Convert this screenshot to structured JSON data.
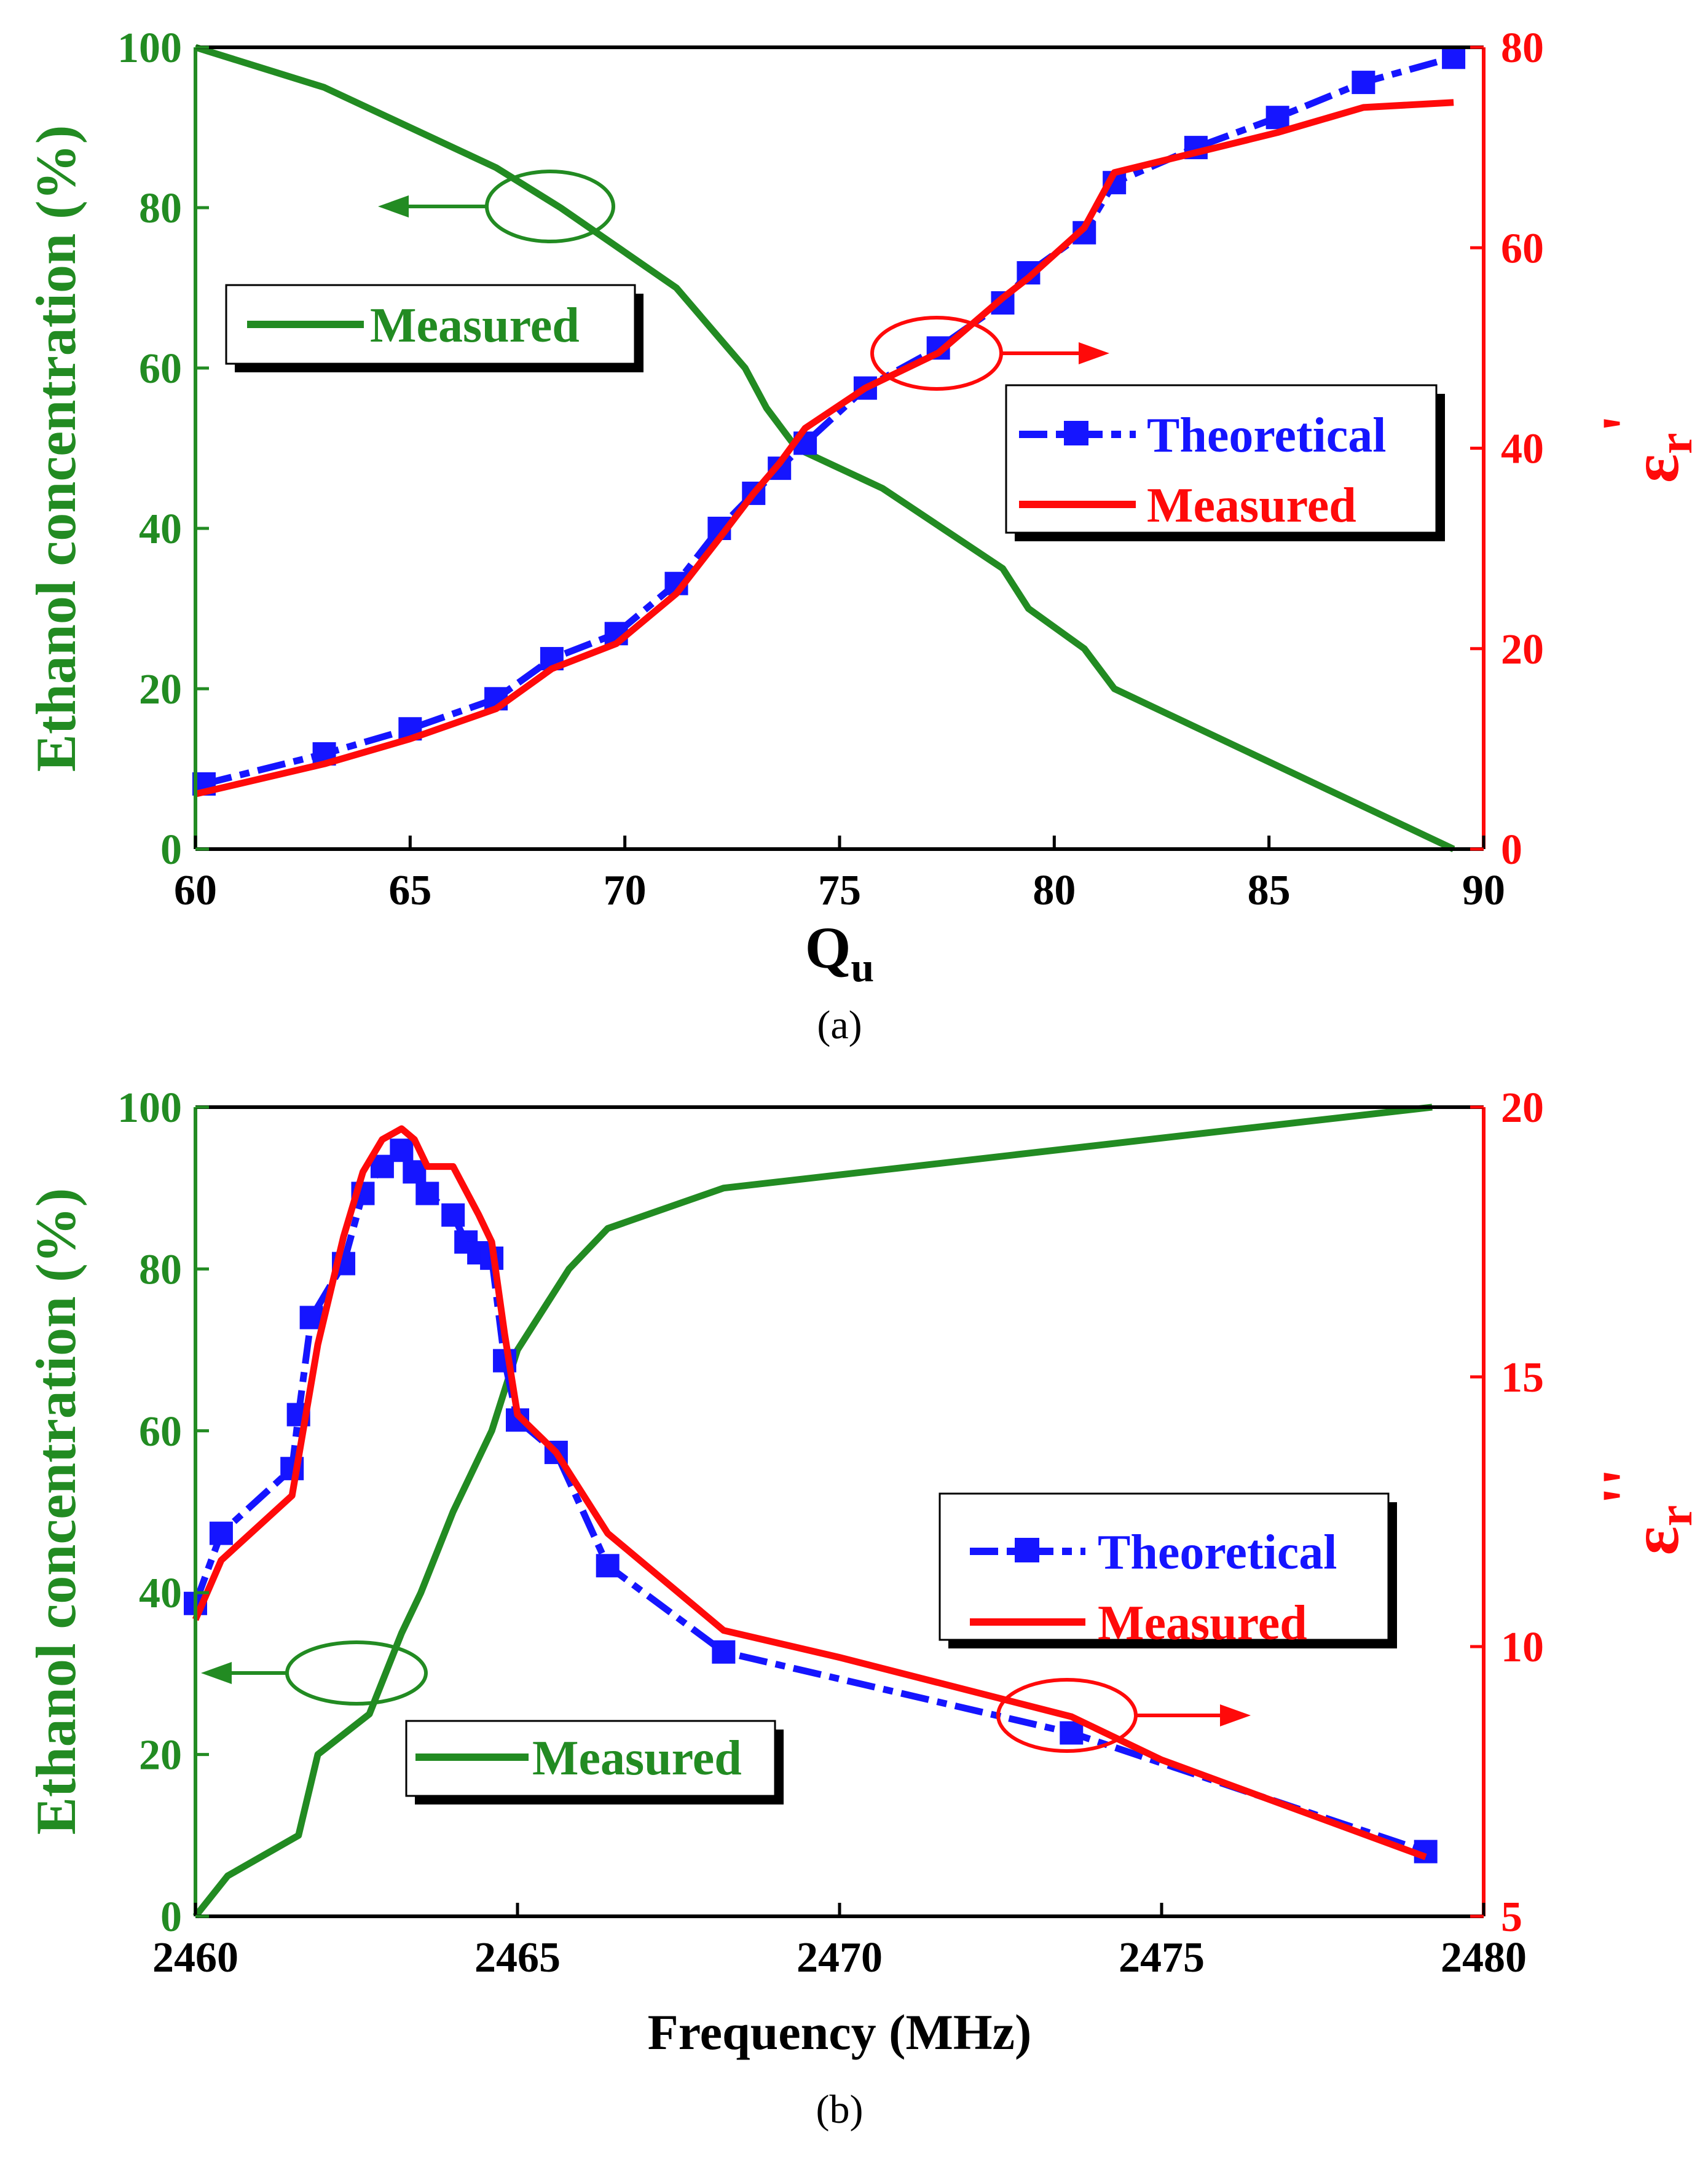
{
  "colors": {
    "green": "#228b22",
    "blue": "#1515ff",
    "red": "#ff0a0a",
    "axis": "#000000"
  },
  "chart_data": [
    {
      "type": "line",
      "panel_label": "(a)",
      "xlabel": "Q",
      "xlabel_sub": "u",
      "ylabel": "Ethanol concentration (%)",
      "y2label": "ε",
      "y2label_sub": "r",
      "y2label_prime": "'",
      "xlim": [
        60,
        90
      ],
      "ylim": [
        0,
        100
      ],
      "y2lim": [
        0,
        80
      ],
      "xticks": [
        60,
        65,
        70,
        75,
        80,
        85,
        90
      ],
      "yticks": [
        0,
        20,
        40,
        60,
        80,
        100
      ],
      "y2ticks": [
        0,
        20,
        40,
        60,
        80
      ],
      "series": [
        {
          "name": "Measured",
          "axis": "left",
          "color": "#228b22",
          "style": "solid",
          "x": [
            60.0,
            63.0,
            67.0,
            68.5,
            71.2,
            72.0,
            72.8,
            73.3,
            74.0,
            76.0,
            78.8,
            79.4,
            80.7,
            81.4,
            89.3
          ],
          "y": [
            100,
            95,
            85,
            80,
            70,
            65,
            60,
            55,
            50,
            45,
            35,
            30,
            25,
            20,
            0
          ]
        },
        {
          "name": "Theoretical",
          "axis": "right",
          "color": "#1515ff",
          "style": "dash-square",
          "x": [
            60.2,
            63.0,
            65.0,
            67.0,
            68.3,
            69.8,
            71.2,
            72.2,
            73.0,
            73.6,
            74.2,
            75.6,
            77.3,
            78.8,
            79.4,
            80.7,
            81.4,
            83.3,
            85.2,
            87.2,
            89.3
          ],
          "y": [
            6.5,
            9.5,
            12,
            15,
            19,
            21.5,
            26.5,
            32,
            35.5,
            38,
            40.5,
            46,
            50,
            54.5,
            57.5,
            61.5,
            66.5,
            70,
            73,
            76.5,
            79
          ]
        },
        {
          "name": "Measured",
          "axis": "right",
          "color": "#ff0a0a",
          "style": "solid",
          "x": [
            60.0,
            63.0,
            65.0,
            67.0,
            68.3,
            69.8,
            71.2,
            72.2,
            73.0,
            73.6,
            74.2,
            75.6,
            77.3,
            78.8,
            79.4,
            80.7,
            81.4,
            83.3,
            85.2,
            87.2,
            89.3
          ],
          "y": [
            5.5,
            8.5,
            11,
            14,
            18,
            20.5,
            25.5,
            31,
            35.5,
            38.5,
            42,
            46,
            49.5,
            55,
            57,
            62,
            67.5,
            69.5,
            71.5,
            74,
            74.5
          ]
        }
      ],
      "annotations": {
        "left_arrow_label": "",
        "right_arrow_label": ""
      }
    },
    {
      "type": "line",
      "panel_label": "(b)",
      "xlabel": "Frequency (MHz)",
      "ylabel": "Ethanol concentration (%)",
      "y2label": "ε",
      "y2label_sub": "r",
      "y2label_prime": "''",
      "xlim": [
        2460,
        2480
      ],
      "ylim": [
        0,
        100
      ],
      "y2lim": [
        5,
        20
      ],
      "xticks": [
        2460,
        2465,
        2470,
        2475,
        2480
      ],
      "yticks": [
        0,
        20,
        40,
        60,
        80,
        100
      ],
      "y2ticks": [
        5,
        10,
        15,
        20
      ],
      "series": [
        {
          "name": "Measured",
          "axis": "left",
          "color": "#228b22",
          "style": "solid",
          "x": [
            2460.0,
            2460.5,
            2461.6,
            2461.9,
            2462.7,
            2463.2,
            2463.5,
            2464.0,
            2464.6,
            2465.0,
            2465.8,
            2466.4,
            2468.2,
            2479.2
          ],
          "y": [
            0,
            5,
            10,
            20,
            25,
            35,
            40,
            50,
            60,
            70,
            80,
            85,
            90,
            100
          ]
        },
        {
          "name": "Theoretical",
          "axis": "right",
          "color": "#1515ff",
          "style": "dash-square",
          "x": [
            2460.0,
            2460.4,
            2461.5,
            2461.6,
            2461.8,
            2462.3,
            2462.6,
            2462.9,
            2463.2,
            2463.4,
            2463.6,
            2464.0,
            2464.2,
            2464.4,
            2464.6,
            2464.8,
            2465.0,
            2465.6,
            2466.4,
            2468.2,
            2473.6,
            2479.1
          ],
          "y": [
            10.8,
            12.1,
            13.3,
            14.3,
            16.1,
            17.1,
            18.4,
            18.9,
            19.2,
            18.8,
            18.4,
            18.0,
            17.5,
            17.3,
            17.2,
            15.3,
            14.2,
            13.6,
            11.5,
            9.9,
            8.4,
            6.2
          ]
        },
        {
          "name": "Measured",
          "axis": "right",
          "color": "#ff0a0a",
          "style": "solid",
          "x": [
            2460.0,
            2460.4,
            2461.5,
            2461.9,
            2462.3,
            2462.6,
            2462.9,
            2463.2,
            2463.4,
            2463.6,
            2464.0,
            2464.4,
            2464.6,
            2464.8,
            2465.0,
            2465.6,
            2466.4,
            2468.2,
            2470.0,
            2473.6,
            2475.0,
            2479.1
          ],
          "y": [
            10.5,
            11.6,
            12.8,
            15.6,
            17.6,
            18.8,
            19.4,
            19.6,
            19.4,
            18.9,
            18.9,
            18.0,
            17.5,
            15.8,
            14.3,
            13.6,
            12.1,
            10.3,
            9.8,
            8.7,
            7.9,
            6.1
          ]
        }
      ],
      "annotations": {
        "left_arrow_label": "",
        "right_arrow_label": ""
      }
    }
  ]
}
